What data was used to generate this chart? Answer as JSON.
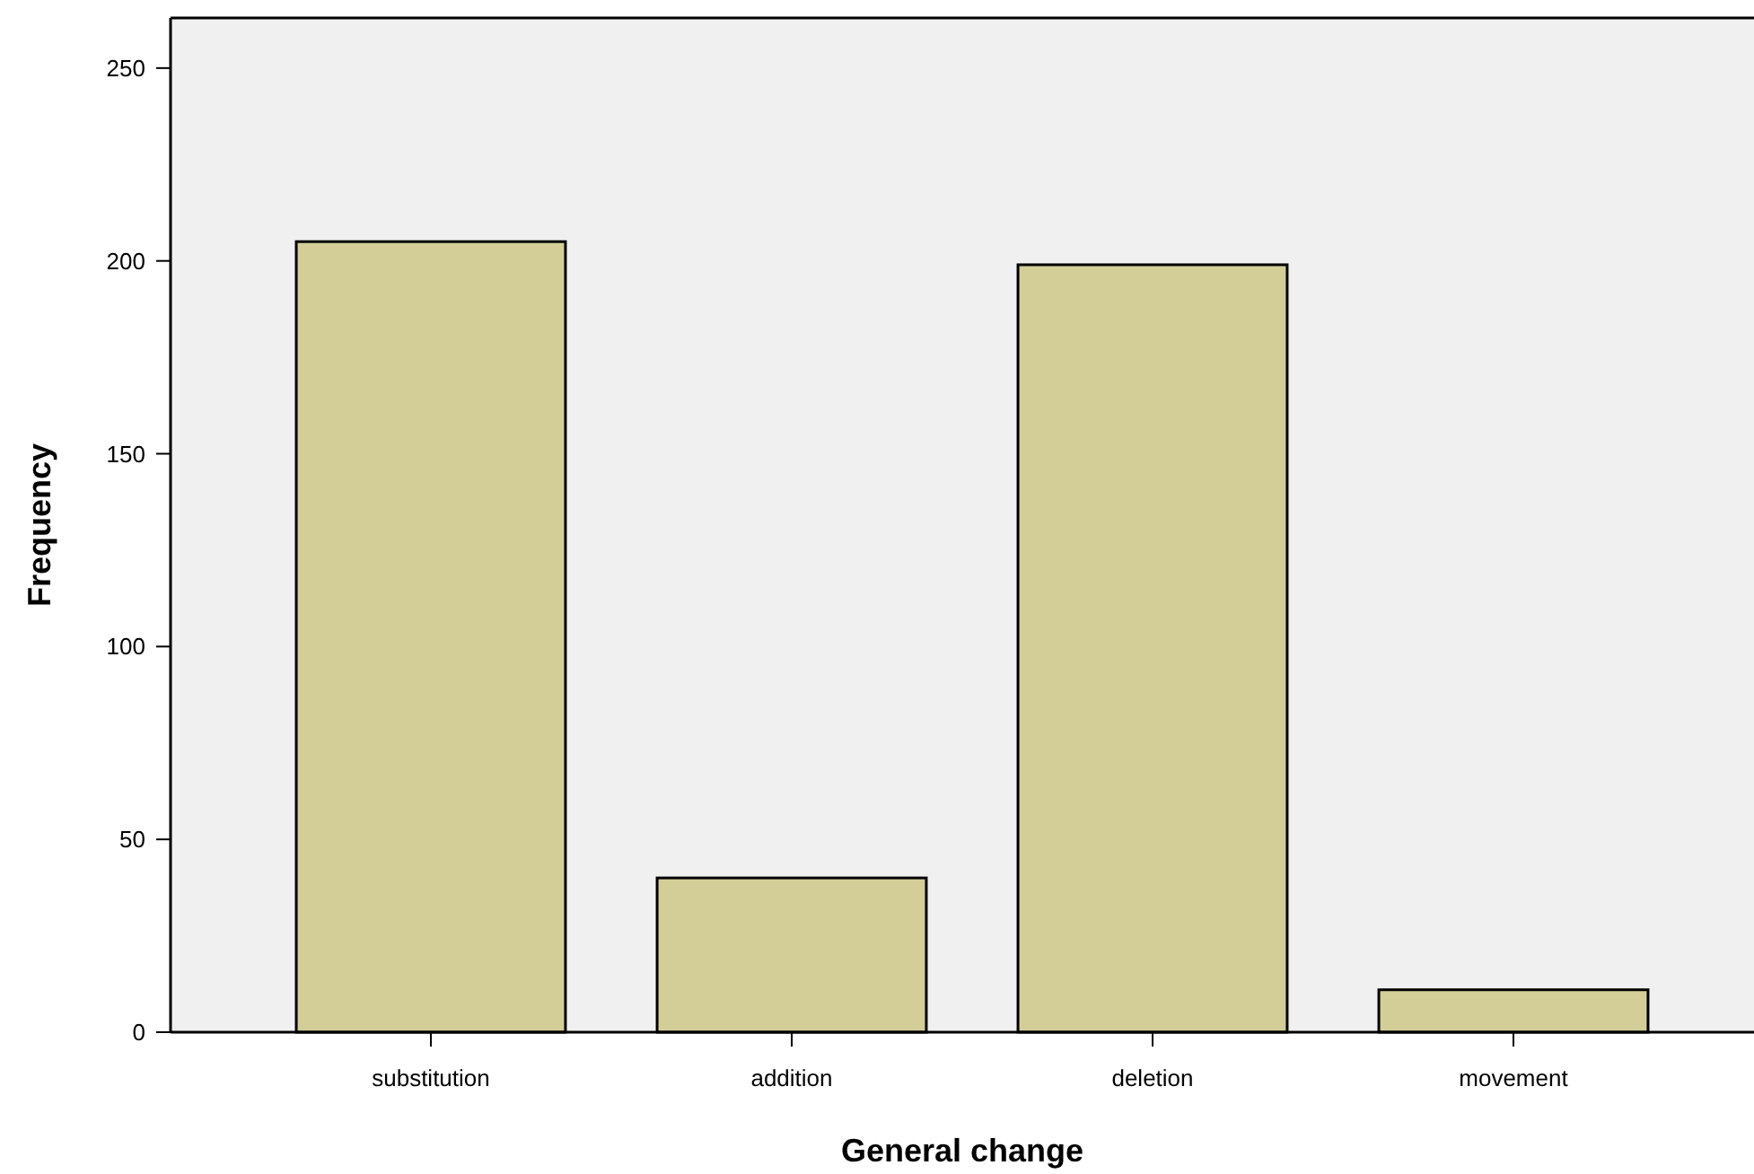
{
  "chart_data": {
    "type": "bar",
    "xlabel": "General change",
    "ylabel": "Frequency",
    "categories": [
      "substitution",
      "addition",
      "deletion",
      "movement"
    ],
    "values": [
      205,
      40,
      199,
      11
    ],
    "color": "#d3ce97",
    "ylim": [
      0,
      263
    ],
    "yticks": [
      0,
      50,
      100,
      150,
      200,
      250
    ],
    "grid": false
  }
}
